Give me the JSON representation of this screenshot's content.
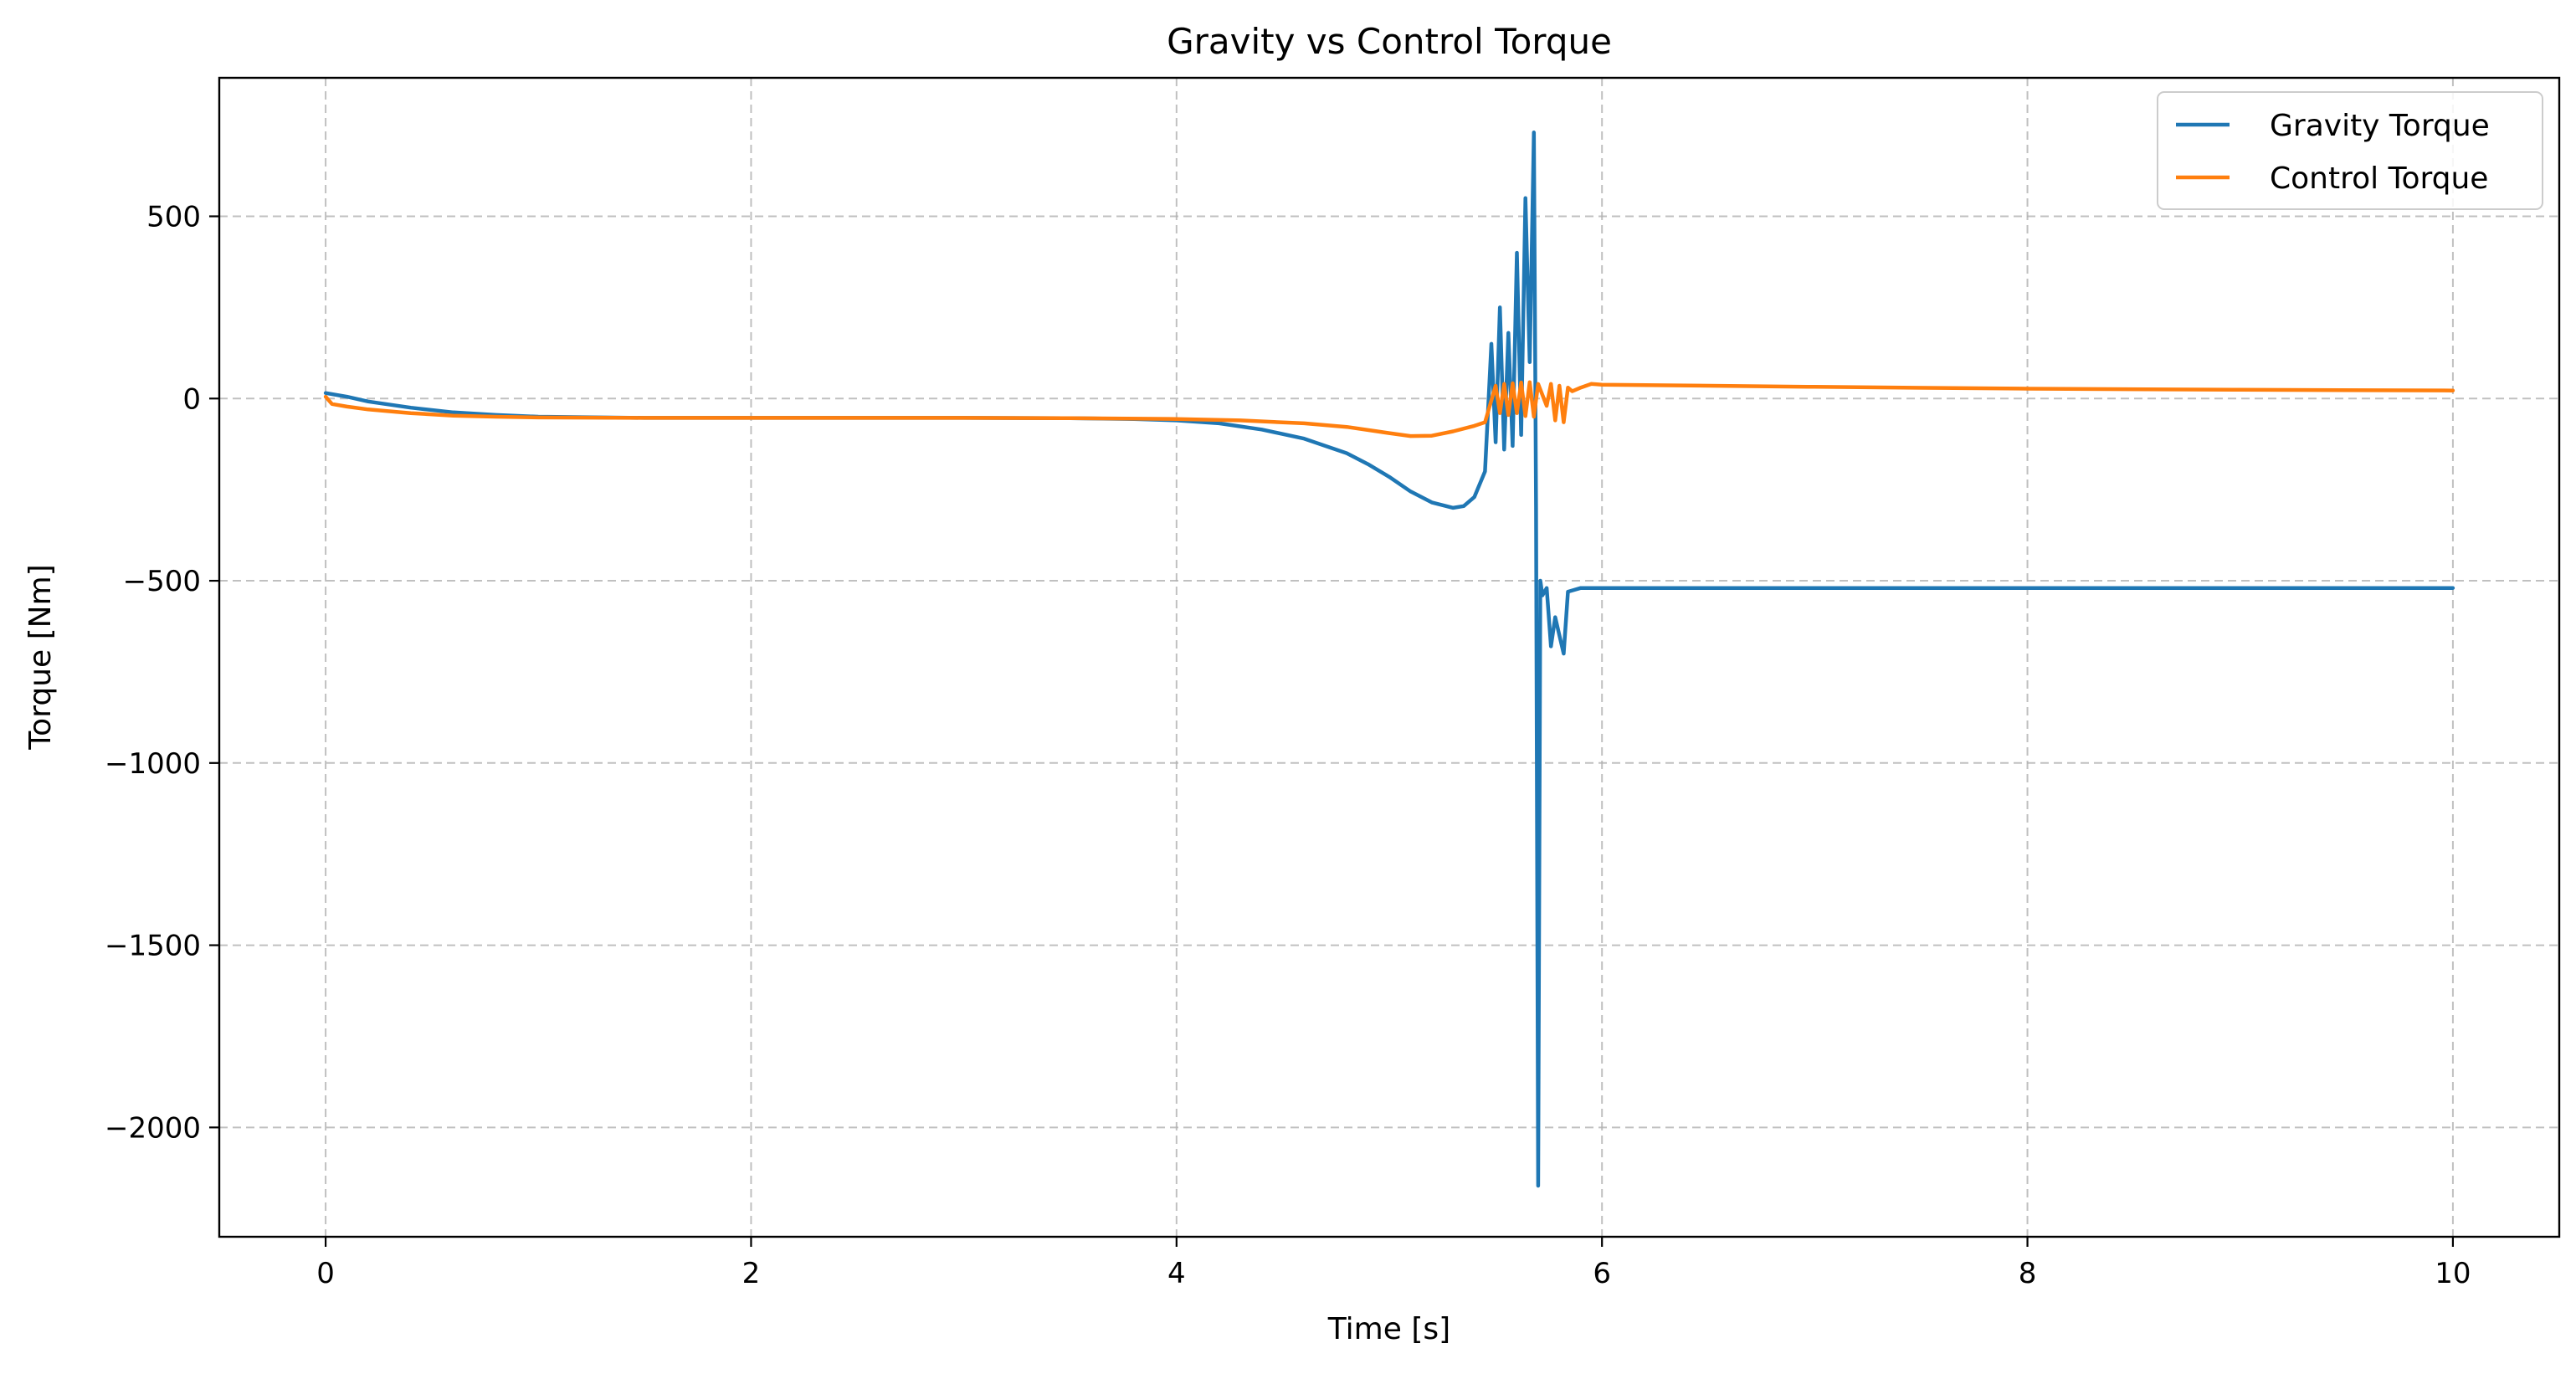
{
  "chart_data": {
    "type": "line",
    "title": "Gravity vs Control Torque",
    "xlabel": "Time [s]",
    "ylabel": "Torque [Nm]",
    "xlim": [
      -0.5,
      10.5
    ],
    "ylim": [
      -2300,
      880
    ],
    "xticks": [
      0,
      2,
      4,
      6,
      8,
      10
    ],
    "xtick_labels": [
      "0",
      "2",
      "4",
      "6",
      "8",
      "10"
    ],
    "yticks": [
      500,
      0,
      -500,
      -1000,
      -1500,
      -2000
    ],
    "ytick_labels": [
      "500",
      "0",
      "−500",
      "−1000",
      "−1500",
      "−2000"
    ],
    "grid": true,
    "legend_position": "top-right",
    "series": [
      {
        "name": "Gravity Torque",
        "color": "#1f77b4",
        "x": [
          0,
          0.1,
          0.2,
          0.4,
          0.6,
          0.8,
          1.0,
          1.5,
          2.0,
          2.5,
          3.0,
          3.5,
          3.8,
          4.0,
          4.2,
          4.4,
          4.6,
          4.8,
          4.9,
          5.0,
          5.1,
          5.2,
          5.3,
          5.35,
          5.4,
          5.45,
          5.48,
          5.5,
          5.52,
          5.54,
          5.56,
          5.58,
          5.6,
          5.62,
          5.64,
          5.66,
          5.68,
          5.69,
          5.7,
          5.71,
          5.72,
          5.74,
          5.76,
          5.78,
          5.8,
          5.82,
          5.84,
          5.9,
          6.0,
          7.0,
          8.0,
          9.0,
          10.0
        ],
        "y": [
          15,
          5,
          -8,
          -25,
          -38,
          -45,
          -50,
          -53,
          -53,
          -53,
          -53,
          -54,
          -56,
          -60,
          -68,
          -85,
          -110,
          -150,
          -180,
          -215,
          -255,
          -285,
          -300,
          -295,
          -270,
          -200,
          150,
          -120,
          250,
          -140,
          180,
          -130,
          400,
          -100,
          550,
          100,
          730,
          -300,
          -2160,
          -500,
          -540,
          -520,
          -680,
          -600,
          -650,
          -700,
          -530,
          -520,
          -520,
          -520,
          -520,
          -520,
          -520
        ]
      },
      {
        "name": "Control Torque",
        "color": "#ff7f0e",
        "x": [
          0,
          0.03,
          0.1,
          0.2,
          0.4,
          0.6,
          0.8,
          1.0,
          1.5,
          2.0,
          2.5,
          3.0,
          3.5,
          4.0,
          4.3,
          4.6,
          4.8,
          5.0,
          5.1,
          5.2,
          5.3,
          5.4,
          5.45,
          5.5,
          5.52,
          5.54,
          5.56,
          5.58,
          5.6,
          5.62,
          5.64,
          5.66,
          5.68,
          5.7,
          5.72,
          5.74,
          5.76,
          5.78,
          5.8,
          5.82,
          5.84,
          5.86,
          5.9,
          5.95,
          6.0,
          7.0,
          8.0,
          9.0,
          10.0
        ],
        "y": [
          5,
          -15,
          -22,
          -30,
          -40,
          -47,
          -50,
          -52,
          -53,
          -53,
          -53,
          -53,
          -54,
          -56,
          -60,
          -68,
          -78,
          -95,
          -103,
          -102,
          -90,
          -75,
          -65,
          35,
          -40,
          40,
          -45,
          42,
          -40,
          44,
          -48,
          45,
          -50,
          40,
          10,
          -20,
          40,
          -60,
          35,
          -65,
          30,
          20,
          30,
          40,
          38,
          32,
          27,
          24,
          22
        ]
      }
    ]
  }
}
